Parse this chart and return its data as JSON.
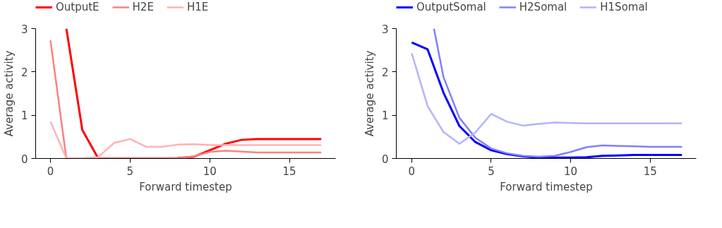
{
  "chart_data": [
    {
      "type": "line",
      "xlabel": "Forward timestep",
      "ylabel": "Average activity",
      "x": [
        0,
        1,
        2,
        3,
        4,
        5,
        6,
        7,
        8,
        9,
        10,
        11,
        12,
        13,
        14,
        15,
        16,
        17
      ],
      "xlim": [
        -0.93,
        17.9
      ],
      "xticks": [
        0,
        5,
        10,
        15
      ],
      "ylim": [
        0,
        3
      ],
      "yticks": [
        0,
        1,
        2,
        3
      ],
      "grid": false,
      "legend": "top",
      "marker": "none",
      "line_style": "solid",
      "series": [
        {
          "name": "OutputE",
          "color": "#ff0000",
          "x": [
            1,
            2,
            3,
            4,
            5,
            6,
            7,
            8,
            9,
            10,
            11,
            12,
            13,
            14,
            15,
            16,
            17
          ],
          "values": [
            3,
            0.66,
            0,
            0,
            0,
            0,
            0,
            0.01,
            0.04,
            0.19,
            0.34,
            0.43,
            0.45,
            0.45,
            0.45,
            0.45,
            0.45
          ]
        },
        {
          "name": "H2E",
          "color": "#ff8080",
          "values": [
            2.73,
            0,
            0,
            0,
            0,
            0,
            0,
            0,
            0.01,
            0.05,
            0.15,
            0.18,
            0.16,
            0.14,
            0.14,
            0.14,
            0.14,
            0.14
          ]
        },
        {
          "name": "H1E",
          "color": "#ffb3b3",
          "values": [
            0.85,
            0,
            0.01,
            0.03,
            0.36,
            0.45,
            0.27,
            0.27,
            0.32,
            0.33,
            0.31,
            0.31,
            0.31,
            0.31,
            0.31,
            0.31,
            0.31,
            0.31
          ]
        }
      ]
    },
    {
      "type": "line",
      "xlabel": "Forward timestep",
      "ylabel": "Average activity",
      "x": [
        0,
        1,
        2,
        3,
        4,
        5,
        6,
        7,
        8,
        9,
        10,
        11,
        12,
        13,
        14,
        15,
        16,
        17
      ],
      "xlim": [
        -0.97,
        17.9
      ],
      "xticks": [
        0,
        5,
        10,
        15
      ],
      "ylim": [
        0,
        3
      ],
      "yticks": [
        0,
        1,
        2,
        3
      ],
      "grid": false,
      "legend": "top",
      "marker": "none",
      "line_style": "solid",
      "series": [
        {
          "name": "OutputSomal",
          "color": "#0000ff",
          "values": [
            2.68,
            2.52,
            1.52,
            0.75,
            0.38,
            0.19,
            0.1,
            0.05,
            0.02,
            0.02,
            0.02,
            0.03,
            0.06,
            0.07,
            0.08,
            0.08,
            0.08,
            0.08
          ]
        },
        {
          "name": "H2Somal",
          "color": "#8080ff",
          "x": [
            1.4,
            2,
            3,
            4,
            5,
            6,
            7,
            8,
            9,
            10,
            11,
            12,
            13,
            14,
            15,
            16,
            17
          ],
          "values": [
            3,
            1.88,
            0.94,
            0.48,
            0.23,
            0.12,
            0.06,
            0.04,
            0.06,
            0.15,
            0.26,
            0.3,
            0.29,
            0.28,
            0.27,
            0.27,
            0.27
          ]
        },
        {
          "name": "H1Somal",
          "color": "#b3b3ff",
          "values": [
            2.43,
            1.21,
            0.61,
            0.34,
            0.6,
            1.03,
            0.85,
            0.76,
            0.8,
            0.83,
            0.82,
            0.81,
            0.81,
            0.81,
            0.81,
            0.81,
            0.81,
            0.81
          ]
        }
      ]
    }
  ]
}
